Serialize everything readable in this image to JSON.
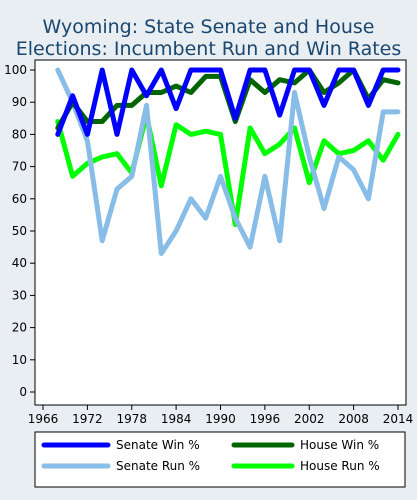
{
  "chart_data": {
    "type": "line",
    "title_lines": [
      "Wyoming: State Senate and House",
      "Elections: Incumbent Run and Win Rates"
    ],
    "xlabel": "",
    "ylabel": "",
    "xlim": [
      1966,
      2014
    ],
    "ylim": [
      0,
      100
    ],
    "x_ticks": [
      1966,
      1972,
      1978,
      1984,
      1990,
      1996,
      2002,
      2008,
      2014
    ],
    "y_ticks": [
      0,
      10,
      20,
      30,
      40,
      50,
      60,
      70,
      80,
      90,
      100
    ],
    "grid": false,
    "legend_position": "bottom",
    "x": [
      1968,
      1970,
      1972,
      1974,
      1976,
      1978,
      1980,
      1982,
      1984,
      1986,
      1988,
      1990,
      1992,
      1994,
      1996,
      1998,
      2000,
      2002,
      2004,
      2006,
      2008,
      2010,
      2012,
      2014
    ],
    "series": [
      {
        "name": "Senate Win %",
        "color": "#0000ff",
        "values": [
          80,
          92,
          80,
          100,
          80,
          100,
          92,
          100,
          88,
          100,
          100,
          100,
          85,
          100,
          100,
          86,
          100,
          100,
          89,
          100,
          100,
          89,
          100,
          100
        ]
      },
      {
        "name": "House Win %",
        "color": "#006400",
        "values": [
          82,
          90,
          84,
          84,
          89,
          89,
          93,
          93,
          95,
          93,
          98,
          98,
          84,
          97,
          93,
          97,
          96,
          100,
          93,
          96,
          100,
          91,
          97,
          96
        ]
      },
      {
        "name": "Senate Run %",
        "color": "#87bde6",
        "values": [
          100,
          90,
          78,
          47,
          63,
          67,
          89,
          43,
          50,
          60,
          54,
          67,
          54,
          45,
          67,
          47,
          93,
          73,
          57,
          73,
          69,
          60,
          87,
          87
        ]
      },
      {
        "name": "House Run %",
        "color": "#00ff00",
        "values": [
          84,
          67,
          71,
          73,
          74,
          68,
          86,
          64,
          83,
          80,
          81,
          80,
          52,
          82,
          74,
          77,
          82,
          65,
          78,
          74,
          75,
          78,
          72,
          80
        ]
      }
    ]
  }
}
